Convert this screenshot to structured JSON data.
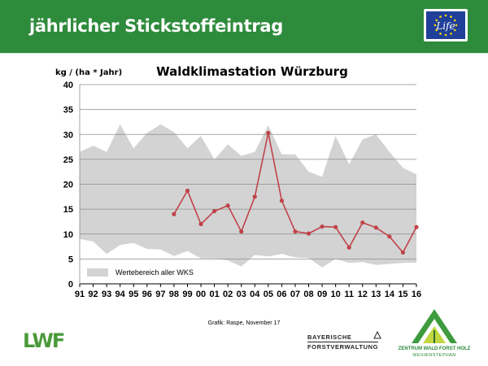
{
  "header": {
    "title": "jährlicher Stickstoffeintrag",
    "logo_text": "Life"
  },
  "colors": {
    "header_bg": "#2e8b3c",
    "band_fill": "#d3d3d3",
    "series_line": "#c0434a",
    "grid": "#8c8c8c",
    "eu_blue": "#1f3f99",
    "eu_stars": "#ffdd00"
  },
  "chart_data": {
    "type": "line",
    "title": "Waldklimastation Würzburg",
    "ylabel": "kg / (ha * Jahr)",
    "xlabel": "",
    "ylim": [
      0,
      40
    ],
    "yticks": [
      0,
      5,
      10,
      15,
      20,
      25,
      30,
      35,
      40
    ],
    "grid": true,
    "categories": [
      "91",
      "92",
      "93",
      "94",
      "95",
      "96",
      "97",
      "98",
      "99",
      "00",
      "01",
      "02",
      "03",
      "04",
      "05",
      "06",
      "07",
      "08",
      "09",
      "10",
      "11",
      "12",
      "13",
      "14",
      "15",
      "16"
    ],
    "band": {
      "name": "Wertebereich aller WKS",
      "upper": [
        26.5,
        27.7,
        26.5,
        32.0,
        27.2,
        30.3,
        32.0,
        30.5,
        27.2,
        29.7,
        25.0,
        28.0,
        25.7,
        26.5,
        31.8,
        26.0,
        26.0,
        22.5,
        21.5,
        29.7,
        24.0,
        29.0,
        30.0,
        26.5,
        23.3,
        22.0
      ],
      "lower": [
        9.0,
        8.5,
        6.0,
        7.8,
        8.2,
        7.0,
        6.9,
        5.6,
        6.6,
        5.1,
        5.1,
        4.7,
        3.5,
        5.8,
        5.5,
        6.0,
        5.3,
        5.2,
        3.3,
        5.0,
        4.2,
        4.4,
        3.8,
        4.0,
        4.2,
        4.3
      ]
    },
    "series": [
      {
        "values": [
          null,
          null,
          null,
          null,
          null,
          null,
          null,
          14.0,
          18.7,
          12.0,
          14.6,
          15.7,
          10.5,
          17.5,
          30.3,
          16.7,
          10.5,
          10.1,
          11.5,
          11.4,
          7.3,
          12.3,
          11.3,
          9.5,
          6.3,
          11.4
        ]
      }
    ],
    "legend": {
      "position": "bottom-left",
      "entries": [
        "Wertebereich aller WKS"
      ]
    }
  },
  "footer": {
    "credit": "Grafik: Raspe, November 17",
    "lwf_logo": "LWF",
    "bay_line1": "BAYERISCHE",
    "bay_line2": "FORSTVERWALTUNG",
    "zwfh_line1": "ZENTRUM WALD FORST HOLZ",
    "zwfh_line2": "WEIHENSTEPHAN"
  }
}
